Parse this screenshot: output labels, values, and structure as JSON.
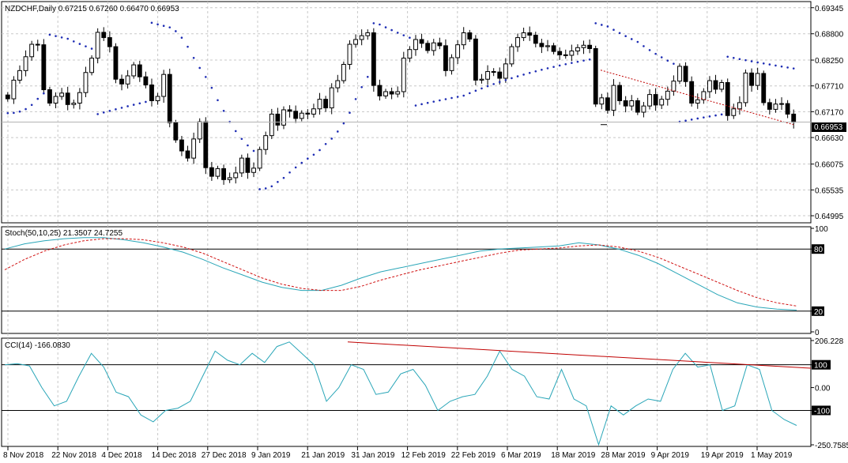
{
  "chart_data": [
    {
      "type": "candlestick",
      "title": "NZDCHF,Daily  0.67215 0.67260 0.66470 0.66953",
      "symbol": "NZDCHF",
      "timeframe": "Daily",
      "ohlc_label": "0.67215 0.67260 0.66470 0.66953",
      "current_price_label": "0.66953",
      "y_ticks": [
        "0.69345",
        "0.68800",
        "0.68250",
        "0.67710",
        "0.67170",
        "0.66630",
        "0.66075",
        "0.65535",
        "0.64995"
      ],
      "ylim": [
        0.6488,
        0.6944
      ],
      "x_ticks": [
        "8 Nov 2018",
        "22 Nov 2018",
        "4 Dec 2018",
        "14 Dec 2018",
        "27 Dec 2018",
        "9 Jan 2019",
        "21 Jan 2019",
        "31 Jan 2019",
        "12 Feb 2019",
        "22 Feb 2019",
        "6 Mar 2019",
        "18 Mar 2019",
        "28 Mar 2019",
        "9 Apr 2019",
        "19 Apr 2019",
        "1 May 2019"
      ],
      "candles_close": [
        0.6744,
        0.6783,
        0.6803,
        0.6832,
        0.6858,
        0.6857,
        0.6763,
        0.6735,
        0.6749,
        0.6756,
        0.6732,
        0.6735,
        0.6757,
        0.6799,
        0.6829,
        0.6883,
        0.6872,
        0.6853,
        0.6785,
        0.6775,
        0.6792,
        0.6815,
        0.679,
        0.6773,
        0.674,
        0.6749,
        0.6795,
        0.6694,
        0.6658,
        0.6635,
        0.662,
        0.666,
        0.6696,
        0.66,
        0.6582,
        0.6598,
        0.6575,
        0.6579,
        0.6589,
        0.662,
        0.659,
        0.6599,
        0.6638,
        0.6667,
        0.6712,
        0.6689,
        0.6721,
        0.6718,
        0.6703,
        0.6714,
        0.6712,
        0.6723,
        0.6743,
        0.6725,
        0.6767,
        0.6782,
        0.6816,
        0.6858,
        0.6868,
        0.6876,
        0.6882,
        0.6772,
        0.675,
        0.6759,
        0.6754,
        0.6759,
        0.6829,
        0.6847,
        0.6868,
        0.686,
        0.6845,
        0.6861,
        0.6855,
        0.6803,
        0.683,
        0.6857,
        0.6882,
        0.6869,
        0.6783,
        0.6785,
        0.6801,
        0.68,
        0.6787,
        0.6817,
        0.6853,
        0.6872,
        0.6882,
        0.6877,
        0.686,
        0.6853,
        0.6855,
        0.6843,
        0.6836,
        0.6835,
        0.6844,
        0.6851,
        0.6856,
        0.6849,
        0.6733,
        0.6746,
        0.672,
        0.6772,
        0.674,
        0.6729,
        0.674,
        0.6716,
        0.6729,
        0.6753,
        0.6731,
        0.6743,
        0.676,
        0.6781,
        0.6812,
        0.678,
        0.6735,
        0.6742,
        0.6759,
        0.6782,
        0.6764,
        0.6778,
        0.6709,
        0.6723,
        0.6736,
        0.6798,
        0.6772,
        0.6797,
        0.6736,
        0.6722,
        0.6733,
        0.6734,
        0.6712,
        0.6695
      ],
      "psar_note": "Parabolic SAR dots above/below price"
    },
    {
      "type": "line",
      "title": "Stoch(50,10,25) 21.3507 24.7255",
      "label": "Stoch(50,10,25) 21.3507 24.7255",
      "y_ticks": [
        "100",
        "80",
        "20",
        "0"
      ],
      "levels": [
        80,
        20
      ],
      "ylim": [
        0,
        100
      ],
      "series": [
        {
          "values": [
            80,
            85,
            88,
            90,
            91,
            91,
            89,
            86,
            82,
            77,
            70,
            62,
            55,
            48,
            43,
            40,
            40,
            45,
            52,
            58,
            62,
            66,
            70,
            74,
            78,
            80,
            81,
            82,
            83,
            86,
            84,
            80,
            74,
            66,
            56,
            46,
            36,
            28,
            24,
            22,
            21
          ]
        },
        {
          "values": [
            60,
            70,
            78,
            84,
            88,
            90,
            90,
            89,
            86,
            82,
            76,
            68,
            60,
            52,
            46,
            42,
            40,
            40,
            44,
            50,
            55,
            60,
            64,
            68,
            72,
            76,
            79,
            80,
            81,
            83,
            84,
            82,
            78,
            72,
            64,
            56,
            48,
            40,
            33,
            28,
            25
          ]
        }
      ]
    },
    {
      "type": "line",
      "title": "CCI(14) -166.0830",
      "label": "CCI(14) -166.0830",
      "y_ticks": [
        "206.228",
        "100",
        "0.00",
        "-100",
        "-250.7585"
      ],
      "levels": [
        100,
        -100
      ],
      "ylim": [
        -250.76,
        206.23
      ],
      "values": [
        100,
        105,
        95,
        0,
        -80,
        -60,
        50,
        150,
        90,
        -20,
        -40,
        -120,
        -150,
        -100,
        -90,
        -60,
        50,
        160,
        120,
        100,
        150,
        110,
        180,
        200,
        150,
        100,
        -60,
        0,
        100,
        80,
        -30,
        -20,
        60,
        80,
        10,
        -100,
        -60,
        -40,
        -30,
        50,
        160,
        80,
        50,
        -40,
        -50,
        80,
        -50,
        -80,
        -250,
        -80,
        -120,
        -80,
        -50,
        -60,
        80,
        150,
        90,
        100,
        -100,
        -80,
        100,
        80,
        -100,
        -140,
        -166
      ],
      "trendline": "resistance"
    }
  ]
}
